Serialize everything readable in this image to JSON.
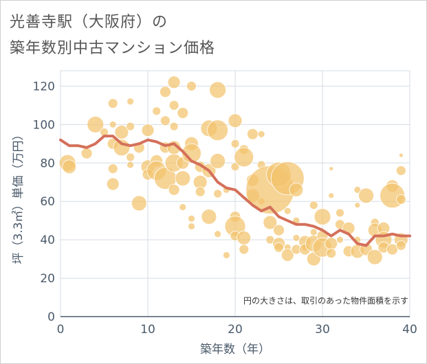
{
  "title_line1": "光善寺駅（大阪府）の",
  "title_line2": "築年数別中古マンション価格",
  "note": "円の大きさは、取引のあった物件面積を示す",
  "colors": {
    "bubble": "#f2c46e",
    "line": "#d4705a",
    "grid": "#d4dbe3",
    "axis": "#4a5a6a"
  },
  "chart_data": {
    "type": "scatter",
    "xlabel": "築年数（年）",
    "ylabel": "坪（3.3㎡）単価（万円）",
    "xlim": [
      0,
      40
    ],
    "ylim": [
      0,
      128
    ],
    "xticks": [
      0,
      10,
      20,
      30,
      40
    ],
    "yticks": [
      0,
      20,
      40,
      60,
      80,
      100,
      120
    ],
    "grid": true,
    "trend_line": {
      "x": [
        0,
        1,
        2,
        3,
        4,
        5,
        6,
        7,
        8,
        9,
        10,
        11,
        12,
        13,
        14,
        15,
        16,
        17,
        18,
        19,
        20,
        21,
        22,
        23,
        24,
        25,
        26,
        27,
        28,
        29,
        30,
        31,
        32,
        33,
        34,
        35,
        36,
        37,
        38,
        39,
        40
      ],
      "y": [
        92,
        89,
        89,
        88,
        90,
        94,
        94,
        90,
        89,
        90,
        92,
        91,
        89,
        90,
        86,
        81,
        79,
        76,
        70,
        67,
        66,
        62,
        58,
        55,
        57,
        52,
        50,
        48,
        48,
        47,
        45,
        42,
        45,
        43,
        38,
        37,
        42,
        42,
        43,
        42,
        42
      ]
    },
    "bubbles": [
      {
        "x": 0.8,
        "y": 80,
        "r": 12
      },
      {
        "x": 1,
        "y": 78,
        "r": 10
      },
      {
        "x": 3,
        "y": 85,
        "r": 8
      },
      {
        "x": 4,
        "y": 100,
        "r": 12
      },
      {
        "x": 5,
        "y": 96,
        "r": 6
      },
      {
        "x": 6,
        "y": 111,
        "r": 7
      },
      {
        "x": 6,
        "y": 100,
        "r": 5
      },
      {
        "x": 6,
        "y": 90,
        "r": 8
      },
      {
        "x": 6,
        "y": 77,
        "r": 7
      },
      {
        "x": 6,
        "y": 69,
        "r": 9
      },
      {
        "x": 7,
        "y": 96,
        "r": 10
      },
      {
        "x": 7,
        "y": 88,
        "r": 12
      },
      {
        "x": 8,
        "y": 112,
        "r": 5
      },
      {
        "x": 8,
        "y": 99,
        "r": 6
      },
      {
        "x": 8,
        "y": 83,
        "r": 6
      },
      {
        "x": 8,
        "y": 79,
        "r": 5
      },
      {
        "x": 9,
        "y": 88,
        "r": 8
      },
      {
        "x": 9,
        "y": 59,
        "r": 11
      },
      {
        "x": 10,
        "y": 97,
        "r": 9
      },
      {
        "x": 10,
        "y": 78,
        "r": 10
      },
      {
        "x": 10,
        "y": 74,
        "r": 8
      },
      {
        "x": 11,
        "y": 107,
        "r": 6
      },
      {
        "x": 11,
        "y": 81,
        "r": 9
      },
      {
        "x": 11,
        "y": 76,
        "r": 14
      },
      {
        "x": 12,
        "y": 117,
        "r": 8
      },
      {
        "x": 12,
        "y": 102,
        "r": 7
      },
      {
        "x": 12,
        "y": 88,
        "r": 8
      },
      {
        "x": 12,
        "y": 72,
        "r": 16
      },
      {
        "x": 13,
        "y": 122,
        "r": 9
      },
      {
        "x": 13,
        "y": 110,
        "r": 7
      },
      {
        "x": 13,
        "y": 99,
        "r": 6
      },
      {
        "x": 13,
        "y": 88,
        "r": 10
      },
      {
        "x": 13,
        "y": 80,
        "r": 13
      },
      {
        "x": 13,
        "y": 66,
        "r": 8
      },
      {
        "x": 14,
        "y": 106,
        "r": 8
      },
      {
        "x": 14,
        "y": 80,
        "r": 9
      },
      {
        "x": 14,
        "y": 72,
        "r": 11
      },
      {
        "x": 14,
        "y": 57,
        "r": 5
      },
      {
        "x": 15,
        "y": 120,
        "r": 7
      },
      {
        "x": 15,
        "y": 90,
        "r": 10
      },
      {
        "x": 15,
        "y": 85,
        "r": 14
      },
      {
        "x": 15,
        "y": 51,
        "r": 5
      },
      {
        "x": 15,
        "y": 47,
        "r": 5
      },
      {
        "x": 16,
        "y": 78,
        "r": 8
      },
      {
        "x": 16,
        "y": 70,
        "r": 10
      },
      {
        "x": 16,
        "y": 65,
        "r": 7
      },
      {
        "x": 17,
        "y": 98,
        "r": 12
      },
      {
        "x": 17,
        "y": 76,
        "r": 10
      },
      {
        "x": 17,
        "y": 52,
        "r": 11
      },
      {
        "x": 18,
        "y": 118,
        "r": 12
      },
      {
        "x": 18,
        "y": 97,
        "r": 15
      },
      {
        "x": 18,
        "y": 81,
        "r": 11
      },
      {
        "x": 18,
        "y": 64,
        "r": 6
      },
      {
        "x": 18,
        "y": 43,
        "r": 5
      },
      {
        "x": 19,
        "y": 66,
        "r": 5
      },
      {
        "x": 19,
        "y": 32,
        "r": 5
      },
      {
        "x": 20,
        "y": 102,
        "r": 10
      },
      {
        "x": 20,
        "y": 90,
        "r": 6
      },
      {
        "x": 20,
        "y": 78,
        "r": 6
      },
      {
        "x": 20,
        "y": 52,
        "r": 8
      },
      {
        "x": 20,
        "y": 47,
        "r": 15
      },
      {
        "x": 20,
        "y": 42,
        "r": 7
      },
      {
        "x": 21,
        "y": 87,
        "r": 7
      },
      {
        "x": 21,
        "y": 83,
        "r": 14
      },
      {
        "x": 21,
        "y": 41,
        "r": 10
      },
      {
        "x": 21,
        "y": 35,
        "r": 7
      },
      {
        "x": 22,
        "y": 95,
        "r": 8
      },
      {
        "x": 22,
        "y": 71,
        "r": 9
      },
      {
        "x": 22,
        "y": 63,
        "r": 10
      },
      {
        "x": 23,
        "y": 95,
        "r": 5
      },
      {
        "x": 23,
        "y": 79,
        "r": 6
      },
      {
        "x": 23,
        "y": 60,
        "r": 5
      },
      {
        "x": 24,
        "y": 66,
        "r": 35
      },
      {
        "x": 24,
        "y": 49,
        "r": 10
      },
      {
        "x": 24,
        "y": 40,
        "r": 6
      },
      {
        "x": 25,
        "y": 74,
        "r": 18
      },
      {
        "x": 25,
        "y": 45,
        "r": 8
      },
      {
        "x": 25,
        "y": 38,
        "r": 9
      },
      {
        "x": 25,
        "y": 36,
        "r": 7
      },
      {
        "x": 26,
        "y": 72,
        "r": 24
      },
      {
        "x": 26,
        "y": 55,
        "r": 5
      },
      {
        "x": 26,
        "y": 36,
        "r": 5
      },
      {
        "x": 26,
        "y": 32,
        "r": 9
      },
      {
        "x": 27,
        "y": 66,
        "r": 10
      },
      {
        "x": 27,
        "y": 50,
        "r": 5
      },
      {
        "x": 27,
        "y": 41,
        "r": 5
      },
      {
        "x": 27,
        "y": 35,
        "r": 7
      },
      {
        "x": 28,
        "y": 39,
        "r": 9
      },
      {
        "x": 28,
        "y": 36,
        "r": 5
      },
      {
        "x": 28,
        "y": 35,
        "r": 8
      },
      {
        "x": 29,
        "y": 58,
        "r": 6
      },
      {
        "x": 29,
        "y": 44,
        "r": 5
      },
      {
        "x": 29,
        "y": 38,
        "r": 12
      },
      {
        "x": 29,
        "y": 30,
        "r": 10
      },
      {
        "x": 30,
        "y": 52,
        "r": 12
      },
      {
        "x": 30,
        "y": 42,
        "r": 8
      },
      {
        "x": 30,
        "y": 36,
        "r": 14
      },
      {
        "x": 31,
        "y": 77,
        "r": 3
      },
      {
        "x": 31,
        "y": 63,
        "r": 4
      },
      {
        "x": 31,
        "y": 38,
        "r": 9
      },
      {
        "x": 31,
        "y": 33,
        "r": 7
      },
      {
        "x": 32,
        "y": 54,
        "r": 6
      },
      {
        "x": 32,
        "y": 48,
        "r": 7
      },
      {
        "x": 32,
        "y": 40,
        "r": 5
      },
      {
        "x": 33,
        "y": 46,
        "r": 9
      },
      {
        "x": 33,
        "y": 34,
        "r": 8
      },
      {
        "x": 34,
        "y": 66,
        "r": 5
      },
      {
        "x": 34,
        "y": 58,
        "r": 4
      },
      {
        "x": 34,
        "y": 40,
        "r": 5
      },
      {
        "x": 34,
        "y": 34,
        "r": 10
      },
      {
        "x": 35,
        "y": 63,
        "r": 11
      },
      {
        "x": 35,
        "y": 35,
        "r": 9
      },
      {
        "x": 36,
        "y": 49,
        "r": 6
      },
      {
        "x": 36,
        "y": 45,
        "r": 10
      },
      {
        "x": 36,
        "y": 31,
        "r": 11
      },
      {
        "x": 37,
        "y": 46,
        "r": 9
      },
      {
        "x": 37,
        "y": 40,
        "r": 12
      },
      {
        "x": 37,
        "y": 36,
        "r": 8
      },
      {
        "x": 38,
        "y": 68,
        "r": 9
      },
      {
        "x": 38,
        "y": 63,
        "r": 18
      },
      {
        "x": 38,
        "y": 35,
        "r": 8
      },
      {
        "x": 39,
        "y": 84,
        "r": 3
      },
      {
        "x": 39,
        "y": 76,
        "r": 7
      },
      {
        "x": 39,
        "y": 61,
        "r": 7
      },
      {
        "x": 39,
        "y": 40,
        "r": 10
      },
      {
        "x": 39,
        "y": 37,
        "r": 7
      }
    ]
  }
}
